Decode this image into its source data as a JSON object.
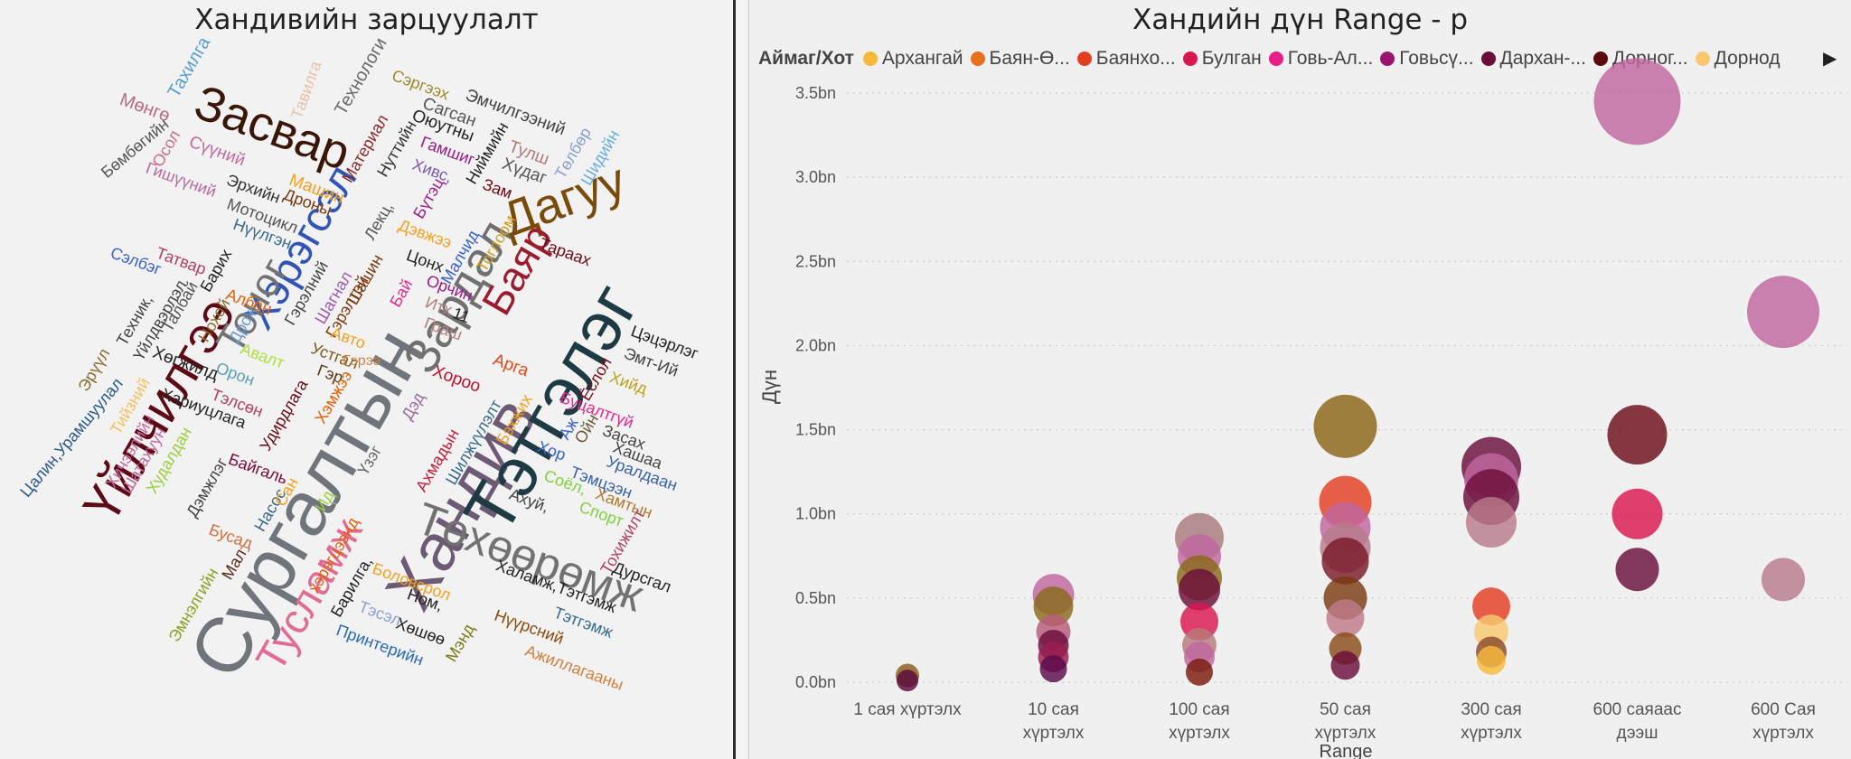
{
  "wordcloud": {
    "title": "Хандивийн зарцуулалт",
    "words": [
      {
        "t": "Хандив",
        "c": "#6d5a74"
      },
      {
        "t": "Сургалтын",
        "c": "#70747b"
      },
      {
        "t": "Тэтгэлэг",
        "c": "#1e3b44"
      },
      {
        "t": "Засвар",
        "c": "#3a1608"
      },
      {
        "t": "Үйлчилгээ",
        "c": "#5c0a16"
      },
      {
        "t": "Тусламж",
        "c": "#e06b97"
      },
      {
        "t": "Төхөөрөмж",
        "c": "#727272"
      },
      {
        "t": "Хэрэгсэл",
        "c": "#3255b3"
      },
      {
        "t": "Тоног",
        "c": "#737373"
      },
      {
        "t": "Зардал",
        "c": "#707070"
      },
      {
        "t": "Дагуу",
        "c": "#7a4a0a"
      },
      {
        "t": "Баяр",
        "c": "#9b1c2e"
      },
      {
        "t": "Мөнгө",
        "c": "#b86b82"
      },
      {
        "t": "Тахилга",
        "c": "#5a9fd1"
      },
      {
        "t": "Тавилга",
        "c": "#e9c0a8"
      },
      {
        "t": "Технологи",
        "c": "#6a6a6a"
      },
      {
        "t": "Сэргээх",
        "c": "#9c8a2a"
      },
      {
        "t": "Эмчилгээний",
        "c": "#444444"
      },
      {
        "t": "Сагсан",
        "c": "#555555"
      },
      {
        "t": "Оюутны",
        "c": "#222222"
      },
      {
        "t": "Бөмбөгийн",
        "c": "#555555"
      },
      {
        "t": "Осол",
        "c": "#c76b8f"
      },
      {
        "t": "Сүүний",
        "c": "#c06ba0"
      },
      {
        "t": "Гишүүний",
        "c": "#b86b9a"
      },
      {
        "t": "Эрхийн",
        "c": "#333333"
      },
      {
        "t": "Машин",
        "c": "#f4a020"
      },
      {
        "t": "Дроны",
        "c": "#7a3a10"
      },
      {
        "t": "Материал",
        "c": "#8a2a2a"
      },
      {
        "t": "Нуттийн",
        "c": "#333333"
      },
      {
        "t": "Гамшиг",
        "c": "#9a1c88"
      },
      {
        "t": "Хивс,",
        "c": "#7a5ab0"
      },
      {
        "t": "Тулш",
        "c": "#b07a7a"
      },
      {
        "t": "Хүдаг",
        "c": "#555555"
      },
      {
        "t": "Төлбөр",
        "c": "#8aa0d0"
      },
      {
        "t": "Шидийн",
        "c": "#6aaede"
      },
      {
        "t": "Зам",
        "c": "#6a0a14"
      },
      {
        "t": "Ниймийн",
        "c": "#222222"
      },
      {
        "t": "Бүтэц",
        "c": "#9a1c88"
      },
      {
        "t": "Мотоцикл",
        "c": "#555555"
      },
      {
        "t": "Нүүлгэн",
        "c": "#3a6a8a"
      },
      {
        "t": "Сэлбэг",
        "c": "#3a62c8"
      },
      {
        "t": "Татвар",
        "c": "#b04060"
      },
      {
        "t": "Барих",
        "c": "#222222"
      },
      {
        "t": "Албан",
        "c": "#e0600a"
      },
      {
        "t": "Гэрэлний",
        "c": "#444444"
      },
      {
        "t": "Лекц,",
        "c": "#555555"
      },
      {
        "t": "Дэвжээ",
        "c": "#f4a020"
      },
      {
        "t": "Шагнал",
        "c": "#a05ab0"
      },
      {
        "t": "Шашин",
        "c": "#7a3a10"
      },
      {
        "t": "Гэрэлтэй",
        "c": "#7a3a10"
      },
      {
        "t": "Цонх",
        "c": "#222222"
      },
      {
        "t": "Малчид",
        "c": "#3a62c8"
      },
      {
        "t": "Тоглоом",
        "c": "#d0a020"
      },
      {
        "t": "Тараах",
        "c": "#6a0a14"
      },
      {
        "t": "Цэцэрлэг",
        "c": "#222222"
      },
      {
        "t": "Эмт-Ий",
        "c": "#444444"
      },
      {
        "t": "Хийд",
        "c": "#c0a020"
      },
      {
        "t": "Ёслол",
        "c": "#7a0a1a"
      },
      {
        "t": "Нохой",
        "c": "#8a6a2a"
      },
      {
        "t": "Дрож",
        "c": "#6a9ad0"
      },
      {
        "t": "Техник,",
        "c": "#444444"
      },
      {
        "t": "Үйлдвэрлэл",
        "c": "#444444"
      },
      {
        "t": "Талбай",
        "c": "#555555"
      },
      {
        "t": "Эрүүл",
        "c": "#8a6a2a"
      },
      {
        "t": "Тийзний",
        "c": "#f4c060"
      },
      {
        "t": "Авалт",
        "c": "#b0e040"
      },
      {
        "t": "Орон",
        "c": "#5aa0b0"
      },
      {
        "t": "Авто",
        "c": "#f4a020"
      },
      {
        "t": "Устгал",
        "c": "#7a5a1a"
      },
      {
        "t": "Бай",
        "c": "#e02a8a"
      },
      {
        "t": "Итх",
        "c": "#b08080"
      },
      {
        "t": "11",
        "c": "#222222"
      },
      {
        "t": "Орчин",
        "c": "#9a1c88"
      },
      {
        "t": "Граш",
        "c": "#b08080"
      },
      {
        "t": "Хөгжилд",
        "c": "#222222"
      },
      {
        "t": "Тэлсөн",
        "c": "#b04060"
      },
      {
        "t": "Хариуцлага",
        "c": "#222222"
      },
      {
        "t": "Удирдлага",
        "c": "#6a0a14"
      },
      {
        "t": "Гэр",
        "c": "#5a3a10"
      },
      {
        "t": "Хэмжээ",
        "c": "#e0600a"
      },
      {
        "t": "Арга",
        "c": "#e04a1a"
      },
      {
        "t": "Хороо",
        "c": "#c0102a"
      },
      {
        "t": "Үзэг",
        "c": "#6a6a6a"
      },
      {
        "t": "Дэд",
        "c": "#9a6a9a"
      },
      {
        "t": "Ахмадын",
        "c": "#c0203a"
      },
      {
        "t": "Бэхжих",
        "c": "#f4a020"
      },
      {
        "t": "Шилжүүлэлт",
        "c": "#3a6a8a"
      },
      {
        "t": "Буцалтгүй",
        "c": "#e02a8a"
      },
      {
        "t": "Засах",
        "c": "#444444"
      },
      {
        "t": "Хашаа",
        "c": "#444444"
      },
      {
        "t": "Уралдаан",
        "c": "#3a62a8"
      },
      {
        "t": "Тэмцээн",
        "c": "#3a62a8"
      },
      {
        "t": "Хамтын",
        "c": "#b07a30"
      },
      {
        "t": "Соёл,",
        "c": "#80d040"
      },
      {
        "t": "Спорт",
        "c": "#80d040"
      },
      {
        "t": "Ахуй,",
        "c": "#444444"
      },
      {
        "t": "Хор",
        "c": "#3a62c8"
      },
      {
        "t": "Аж",
        "c": "#3a62c8"
      },
      {
        "t": "Ойн",
        "c": "#6a5a3a"
      },
      {
        "t": "Тохижилт",
        "c": "#b04060"
      },
      {
        "t": "Дурсгал",
        "c": "#222222"
      },
      {
        "t": "Цалин,Урамшуулал",
        "c": "#2a5a8a"
      },
      {
        "t": "Хичээлийн",
        "c": "#c06b9a"
      },
      {
        "t": "Шатахуун",
        "c": "#c06b9a"
      },
      {
        "t": "Худалдан",
        "c": "#9ad040"
      },
      {
        "t": "Дэмжлэг",
        "c": "#444444"
      },
      {
        "t": "Байгаль",
        "c": "#7a0a3a"
      },
      {
        "t": "Насос",
        "c": "#3a6a8a"
      },
      {
        "t": "Сан",
        "c": "#f4a020"
      },
      {
        "t": "Ид",
        "c": "#9ad040"
      },
      {
        "t": "Бусад",
        "c": "#d07040"
      },
      {
        "t": "Мал",
        "c": "#5a2a1a"
      },
      {
        "t": "Эмнэлгийн",
        "c": "#8aa020"
      },
      {
        "t": "хэрэгцээнд",
        "c": "#e0600a"
      },
      {
        "t": "Барилга,",
        "c": "#222222"
      },
      {
        "t": "Боловсрол",
        "c": "#f4a020"
      },
      {
        "t": "Ном,",
        "c": "#222222"
      },
      {
        "t": "Тэсэл",
        "c": "#8aa0d0"
      },
      {
        "t": "Хөшөө",
        "c": "#222222"
      },
      {
        "t": "Принтерийн",
        "c": "#2a6ab0"
      },
      {
        "t": "Мэнд",
        "c": "#7a7a1a"
      },
      {
        "t": "Нүүрсний",
        "c": "#8a4a10"
      },
      {
        "t": "Тэтгэмж",
        "c": "#3a6a8a"
      },
      {
        "t": "Ажиллагааны",
        "c": "#d08040"
      },
      {
        "t": "Халамж,Тэтгэмж",
        "c": "#222222"
      },
      {
        "t": "Гэрээ",
        "c": "#d08040"
      }
    ]
  },
  "bubble": {
    "title": "Хандийн дүн Range - р",
    "legend_title": "Аймаг/Хот",
    "legend": [
      {
        "name": "Архангай",
        "color": "#f6b83a"
      },
      {
        "name": "Баян-Ө...",
        "color": "#e8701e"
      },
      {
        "name": "Баянхо...",
        "color": "#e43d20"
      },
      {
        "name": "Булган",
        "color": "#d9164e"
      },
      {
        "name": "Говь-Ал...",
        "color": "#ea1d86"
      },
      {
        "name": "Говьсү...",
        "color": "#9b1470"
      },
      {
        "name": "Дархан-...",
        "color": "#6b0d3a"
      },
      {
        "name": "Дорног...",
        "color": "#5a0a0a"
      },
      {
        "name": "Дорнод",
        "color": "#f8c870"
      }
    ],
    "legend_next": "▶",
    "xlabel": "Range",
    "ylabel": "Дүн"
  },
  "chart_data": {
    "type": "scatter",
    "title": "Хандийн дүн Range - р",
    "xlabel": "Range",
    "ylabel": "Дүн",
    "categories": [
      "1 сая хүртэлх",
      "10 сая хүртэлх",
      "100 сая хүртэлх",
      "50 сая хүртэлх",
      "300 сая хүртэлх",
      "600 саяаас дээш",
      "600 Сая хүртэлх"
    ],
    "yticks": [
      "0.0bn",
      "0.5bn",
      "1.0bn",
      "1.5bn",
      "2.0bn",
      "2.5bn",
      "3.0bn",
      "3.5bn"
    ],
    "ylim": [
      0,
      3.5
    ],
    "grid": true,
    "legend_position": "top",
    "points": [
      {
        "x": 0,
        "y": 0.04,
        "r": 13,
        "c": "#8a5a1a"
      },
      {
        "x": 0,
        "y": 0.01,
        "r": 12,
        "c": "#5a0a3a"
      },
      {
        "x": 1,
        "y": 0.52,
        "r": 23,
        "c": "#c066a0"
      },
      {
        "x": 1,
        "y": 0.45,
        "r": 22,
        "c": "#8a6a1a"
      },
      {
        "x": 1,
        "y": 0.3,
        "r": 19,
        "c": "#b85a7a"
      },
      {
        "x": 1,
        "y": 0.22,
        "r": 17,
        "c": "#6b0d3a"
      },
      {
        "x": 1,
        "y": 0.15,
        "r": 17,
        "c": "#9b1c50"
      },
      {
        "x": 1,
        "y": 0.08,
        "r": 15,
        "c": "#5a0a4a"
      },
      {
        "x": 2,
        "y": 0.86,
        "r": 27,
        "c": "#a87a7a"
      },
      {
        "x": 2,
        "y": 0.75,
        "r": 24,
        "c": "#c066a0"
      },
      {
        "x": 2,
        "y": 0.62,
        "r": 25,
        "c": "#8a6a1a"
      },
      {
        "x": 2,
        "y": 0.55,
        "r": 23,
        "c": "#6b0d3a"
      },
      {
        "x": 2,
        "y": 0.36,
        "r": 21,
        "c": "#d9164e"
      },
      {
        "x": 2,
        "y": 0.22,
        "r": 19,
        "c": "#b87a7a"
      },
      {
        "x": 2,
        "y": 0.15,
        "r": 17,
        "c": "#c066a0"
      },
      {
        "x": 2,
        "y": 0.06,
        "r": 15,
        "c": "#7a1a0a"
      },
      {
        "x": 3,
        "y": 1.52,
        "r": 35,
        "c": "#8a6414"
      },
      {
        "x": 3,
        "y": 1.07,
        "r": 29,
        "c": "#e43d20"
      },
      {
        "x": 3,
        "y": 0.92,
        "r": 28,
        "c": "#c066a0"
      },
      {
        "x": 3,
        "y": 0.8,
        "r": 28,
        "c": "#b87a8a"
      },
      {
        "x": 3,
        "y": 0.72,
        "r": 26,
        "c": "#7a1a2a"
      },
      {
        "x": 3,
        "y": 0.5,
        "r": 24,
        "c": "#7a3a10"
      },
      {
        "x": 3,
        "y": 0.38,
        "r": 21,
        "c": "#c07a8a"
      },
      {
        "x": 3,
        "y": 0.2,
        "r": 18,
        "c": "#8a4a1a"
      },
      {
        "x": 3,
        "y": 0.1,
        "r": 16,
        "c": "#6b0d3a"
      },
      {
        "x": 4,
        "y": 1.28,
        "r": 33,
        "c": "#6b0d3a"
      },
      {
        "x": 4,
        "y": 1.2,
        "r": 30,
        "c": "#c066a0"
      },
      {
        "x": 4,
        "y": 1.1,
        "r": 31,
        "c": "#6b0d3a"
      },
      {
        "x": 4,
        "y": 0.95,
        "r": 28,
        "c": "#b87a8a"
      },
      {
        "x": 4,
        "y": 0.45,
        "r": 21,
        "c": "#e43d20"
      },
      {
        "x": 4,
        "y": 0.3,
        "r": 19,
        "c": "#f8c870"
      },
      {
        "x": 4,
        "y": 0.18,
        "r": 17,
        "c": "#8a4a2a"
      },
      {
        "x": 4,
        "y": 0.13,
        "r": 16,
        "c": "#f6b83a"
      },
      {
        "x": 5,
        "y": 3.45,
        "r": 48,
        "c": "#c066a0"
      },
      {
        "x": 5,
        "y": 1.47,
        "r": 33,
        "c": "#6b0d1a"
      },
      {
        "x": 5,
        "y": 1.0,
        "r": 28,
        "c": "#d9164e"
      },
      {
        "x": 5,
        "y": 0.67,
        "r": 24,
        "c": "#6b0d3a"
      },
      {
        "x": 6,
        "y": 2.2,
        "r": 40,
        "c": "#c066a0"
      },
      {
        "x": 6,
        "y": 0.61,
        "r": 24,
        "c": "#b87a8a"
      }
    ]
  }
}
